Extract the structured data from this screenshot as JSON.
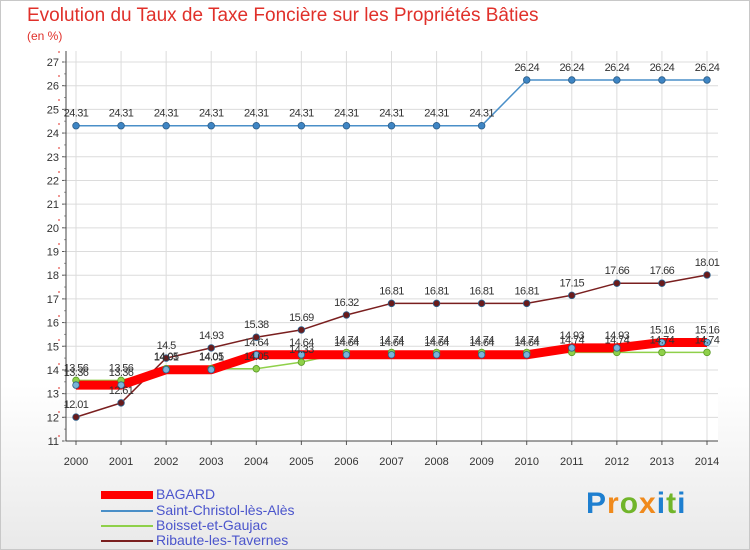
{
  "chart_data": {
    "type": "line",
    "title": "Evolution du Taux de Taxe Foncière sur les Propriétés Bâties",
    "unit_label": "(en %)",
    "x": [
      "2000",
      "2001",
      "2002",
      "2003",
      "2004",
      "2005",
      "2006",
      "2007",
      "2008",
      "2009",
      "2010",
      "2011",
      "2012",
      "2013",
      "2014"
    ],
    "ylim": [
      11,
      27
    ],
    "yticks": [
      "11",
      "12",
      "13",
      "14",
      "15",
      "16",
      "17",
      "18",
      "19",
      "20",
      "21",
      "22",
      "23",
      "24",
      "25",
      "26",
      "27"
    ],
    "series": [
      {
        "name": "BAGARD",
        "color": "#ff0000",
        "values": [
          13.36,
          13.36,
          14.01,
          14.01,
          14.64,
          14.64,
          14.64,
          14.64,
          14.64,
          14.64,
          14.64,
          14.93,
          14.93,
          15.16,
          15.16
        ],
        "labels": [
          "13.36",
          "13.36",
          "14.01",
          "14.01",
          "14.64",
          "14.64",
          "14.64",
          "14.64",
          "14.64",
          "14.64",
          "14.64",
          "14.93",
          "14.93",
          "15.16",
          "15.16"
        ]
      },
      {
        "name": "Saint-Christol-lès-Alès",
        "color": "#4a8fc8",
        "values": [
          24.31,
          24.31,
          24.31,
          24.31,
          24.31,
          24.31,
          24.31,
          24.31,
          24.31,
          24.31,
          26.24,
          26.24,
          26.24,
          26.24,
          26.24
        ],
        "labels": [
          "24.31",
          "24.31",
          "24.31",
          "24.31",
          "24.31",
          "24.31",
          "24.31",
          "24.31",
          "24.31",
          "24.31",
          "26.24",
          "26.24",
          "26.24",
          "26.24",
          "26.24"
        ]
      },
      {
        "name": "Boisset-et-Gaujac",
        "color": "#8fd04a",
        "values": [
          13.56,
          13.56,
          14.05,
          14.05,
          14.05,
          14.33,
          14.74,
          14.74,
          14.74,
          14.74,
          14.74,
          14.74,
          14.74,
          14.74,
          14.74
        ],
        "labels": [
          "13.56",
          "13.56",
          "14.05",
          "14.05",
          "14.05",
          "14.33",
          "14.74",
          "14.74",
          "14.74",
          "14.74",
          "14.74",
          "14.74",
          "14.74",
          "14.74",
          "14.74"
        ]
      },
      {
        "name": "Ribaute-les-Tavernes",
        "color": "#7a1f1f",
        "values": [
          12.01,
          12.61,
          14.5,
          14.93,
          15.38,
          15.69,
          16.32,
          16.81,
          16.81,
          16.81,
          16.81,
          17.15,
          17.66,
          17.66,
          18.01
        ],
        "labels": [
          "12.01",
          "12.61",
          "14.5",
          "14.93",
          "15.38",
          "15.69",
          "16.32",
          "16.81",
          "16.81",
          "16.81",
          "16.81",
          "17.15",
          "17.66",
          "17.66",
          "18.01"
        ]
      }
    ]
  },
  "logo": {
    "letters": [
      "P",
      "r",
      "o",
      "x",
      "i",
      "t",
      "i"
    ]
  }
}
